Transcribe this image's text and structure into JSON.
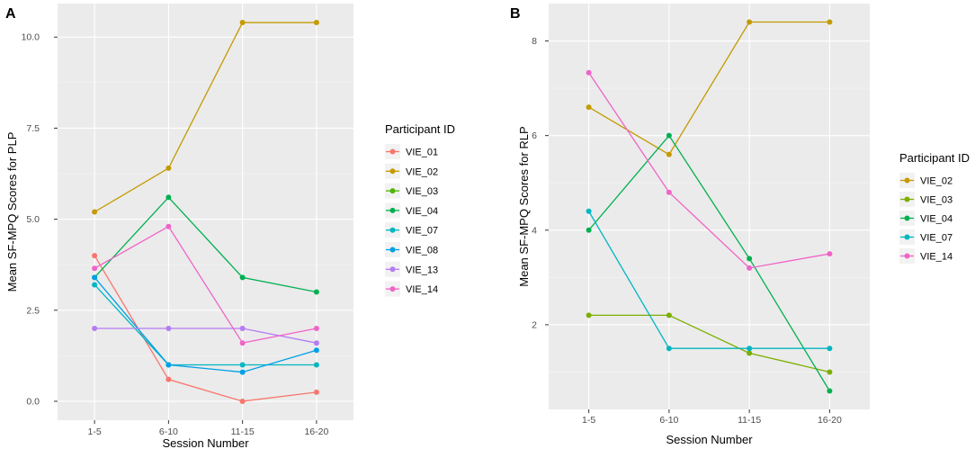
{
  "chart_data": [
    {
      "type": "line",
      "panel": "A",
      "title": "",
      "xlabel": "Session Number",
      "ylabel": "Mean SF-MPQ Scores for PLP",
      "categories": [
        "1-5",
        "6-10",
        "11-15",
        "16-20"
      ],
      "ylim": [
        -0.52,
        10.92
      ],
      "yticks": [
        0.0,
        2.5,
        5.0,
        7.5,
        10.0
      ],
      "ytick_labels": [
        "0.0",
        "2.5",
        "5.0",
        "7.5",
        "10.0"
      ],
      "legend_title": "Participant ID",
      "legend_position": "right",
      "series": [
        {
          "name": "VIE_01",
          "color": "#F8766D",
          "values": [
            4.0,
            0.6,
            0.0,
            0.25
          ]
        },
        {
          "name": "VIE_02",
          "color": "#C49A00",
          "values": [
            5.2,
            6.4,
            10.4,
            10.4
          ]
        },
        {
          "name": "VIE_03",
          "color": "#53B400",
          "values": [
            null,
            null,
            null,
            null
          ]
        },
        {
          "name": "VIE_04",
          "color": "#00B050",
          "values": [
            3.4,
            5.6,
            3.4,
            3.0
          ]
        },
        {
          "name": "VIE_07",
          "color": "#00B6C2",
          "values": [
            3.2,
            1.0,
            1.0,
            1.0
          ]
        },
        {
          "name": "VIE_08",
          "color": "#00A0E6",
          "values": [
            3.4,
            1.0,
            0.8,
            1.4
          ]
        },
        {
          "name": "VIE_13",
          "color": "#B57BF4",
          "values": [
            2.0,
            2.0,
            2.0,
            1.6
          ]
        },
        {
          "name": "VIE_14",
          "color": "#F064C8",
          "values": [
            3.65,
            4.8,
            1.6,
            2.0
          ]
        }
      ]
    },
    {
      "type": "line",
      "panel": "B",
      "title": "",
      "xlabel": "Session Number",
      "ylabel": "Mean SF-MPQ  Scores for RLP",
      "categories": [
        "1-5",
        "6-10",
        "11-15",
        "16-20"
      ],
      "ylim": [
        0.21,
        8.79
      ],
      "yticks": [
        2,
        4,
        6,
        8
      ],
      "ytick_labels": [
        "2",
        "4",
        "6",
        "8"
      ],
      "legend_title": "Participant ID",
      "legend_position": "right",
      "series": [
        {
          "name": "VIE_02",
          "color": "#C49A00",
          "values": [
            6.6,
            5.6,
            8.4,
            8.4
          ]
        },
        {
          "name": "VIE_03",
          "color": "#7CAE00",
          "values": [
            2.2,
            2.2,
            1.4,
            1.0
          ]
        },
        {
          "name": "VIE_04",
          "color": "#00B050",
          "values": [
            4.0,
            6.0,
            3.4,
            0.6
          ]
        },
        {
          "name": "VIE_07",
          "color": "#00B6C2",
          "values": [
            4.4,
            1.5,
            1.5,
            1.5
          ]
        },
        {
          "name": "VIE_14",
          "color": "#F064C8",
          "values": [
            7.33,
            4.8,
            3.2,
            3.5
          ]
        }
      ]
    }
  ]
}
